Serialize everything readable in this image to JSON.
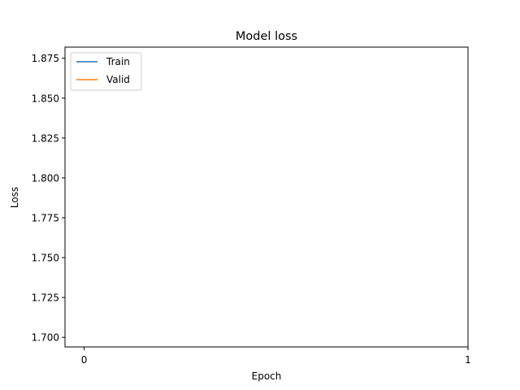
{
  "chart_data": {
    "type": "line",
    "title": "Model loss",
    "xlabel": "Epoch",
    "ylabel": "Loss",
    "x_ticks": [
      0,
      1
    ],
    "y_ticks": [
      1.7,
      1.725,
      1.75,
      1.775,
      1.8,
      1.825,
      1.85,
      1.875
    ],
    "y_tick_labels": [
      "1.700",
      "1.725",
      "1.750",
      "1.775",
      "1.800",
      "1.825",
      "1.850",
      "1.875"
    ],
    "xlim": [
      -0.05,
      1.0
    ],
    "ylim": [
      1.694,
      1.882
    ],
    "grid": false,
    "legend_position": "top-left",
    "series": [
      {
        "name": "Train",
        "color": "#1f77b4",
        "x": [],
        "y": []
      },
      {
        "name": "Valid",
        "color": "#ff7f0e",
        "x": [],
        "y": []
      }
    ]
  }
}
